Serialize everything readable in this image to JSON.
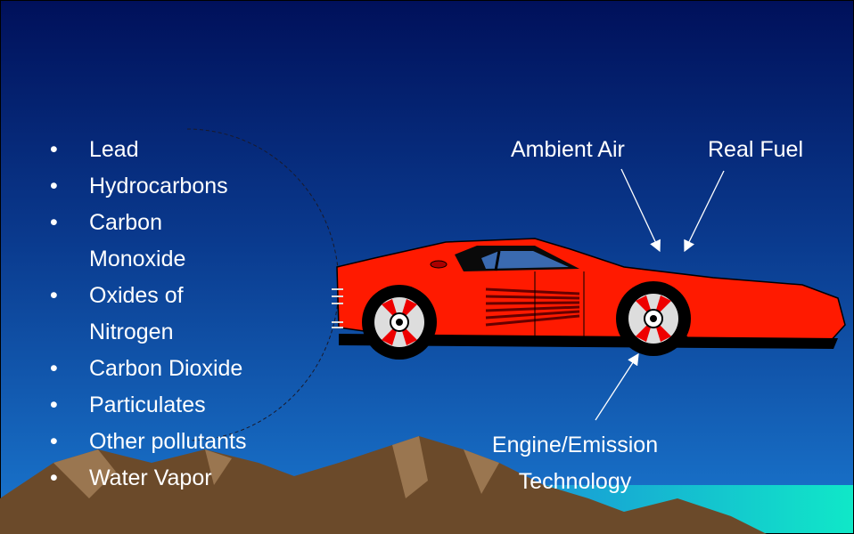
{
  "bullets": [
    {
      "lines": [
        "Lead"
      ]
    },
    {
      "lines": [
        "Hydrocarbons"
      ]
    },
    {
      "lines": [
        "Carbon",
        "Monoxide"
      ]
    },
    {
      "lines": [
        "Oxides of",
        "Nitrogen"
      ]
    },
    {
      "lines": [
        "Carbon Dioxide"
      ]
    },
    {
      "lines": [
        "Particulates"
      ]
    },
    {
      "lines": [
        "Other pollutants"
      ]
    },
    {
      "lines": [
        "Water Vapor"
      ]
    }
  ],
  "labels": {
    "ambient_air": "Ambient Air",
    "real_fuel": "Real Fuel",
    "engine": {
      "lines": [
        "Engine/Emission",
        "Technology"
      ]
    }
  }
}
